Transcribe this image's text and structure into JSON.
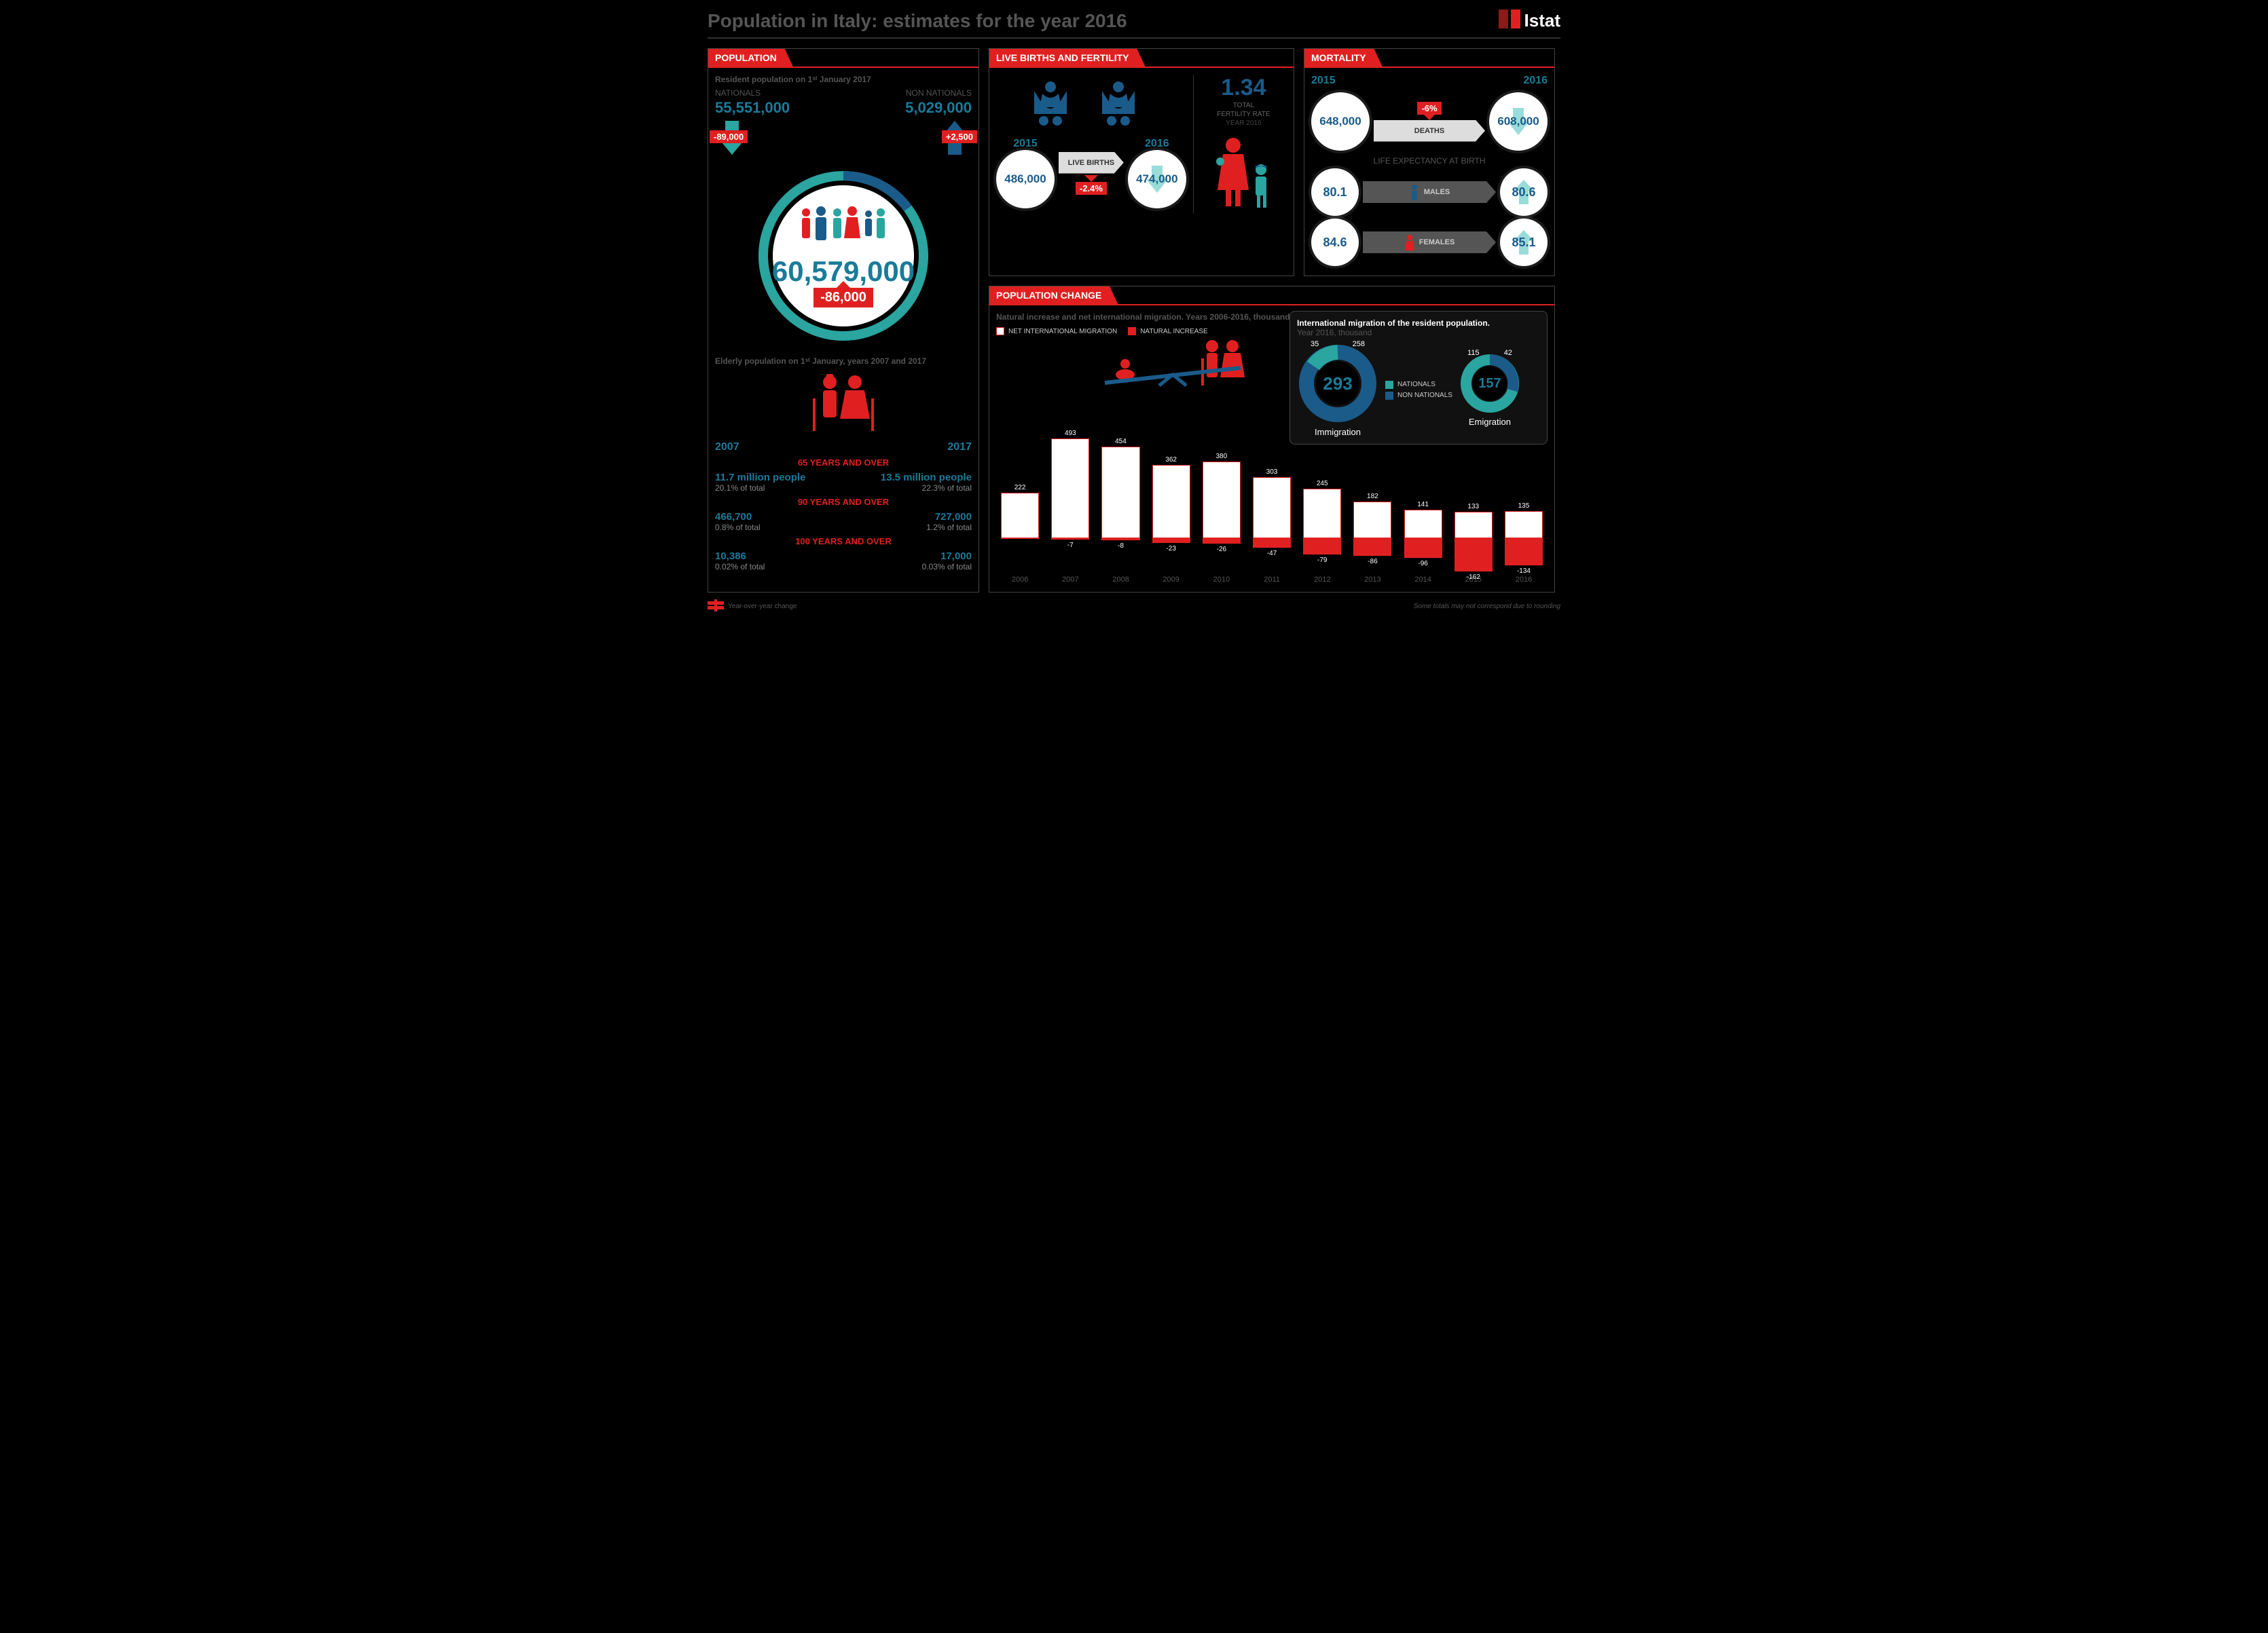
{
  "title": "Population in Italy: estimates for the year 2016",
  "logo": {
    "text": "Istat",
    "color_left": "#8b1a1a",
    "color_right": "#e02020"
  },
  "colors": {
    "red": "#e02020",
    "cyan": "#2aa5a0",
    "blue": "#1a5b8a",
    "stat_blue": "#1a7b9a",
    "bg": "#000000",
    "muted": "#555555",
    "circle_fill": "#ffffff",
    "arrow_grey": "#cccccc"
  },
  "population": {
    "header": "POPULATION",
    "sub1": "Resident population on 1ˢᵗ January 2017",
    "nationals_label": "NATIONALS",
    "nationals_val": "55,551,000",
    "nationals_change": "-89,000",
    "nationals_change_dir": "down",
    "nonnat_label": "NON NATIONALS",
    "nonnat_val": "5,029,000",
    "nonnat_change": "+2,500",
    "nonnat_change_dir": "up",
    "total": "60,579,000",
    "total_change": "-86,000",
    "elderly_sub": "Elderly population on 1ˢᵗ January, years 2007 and 2017",
    "y2007": "2007",
    "y2017": "2017",
    "rows": [
      {
        "label": "65 YEARS AND OVER",
        "l_val": "11.7 million people",
        "l_pct": "20.1% of total",
        "r_val": "13.5 million people",
        "r_pct": "22.3% of total"
      },
      {
        "label": "90 YEARS AND OVER",
        "l_val": "466,700",
        "l_pct": "0.8% of total",
        "r_val": "727,000",
        "r_pct": "1.2% of total"
      },
      {
        "label": "100 YEARS AND OVER",
        "l_val": "10,386",
        "l_pct": "0.02% of total",
        "r_val": "17,000",
        "r_pct": "0.03% of total"
      }
    ]
  },
  "births": {
    "header": "LIVE BIRTHS AND FERTILITY",
    "y2015": "2015",
    "y2016": "2016",
    "val2015": "486,000",
    "label": "LIVE BIRTHS",
    "val2016": "474,000",
    "change": "-2.4%",
    "fertility_num": "1.34",
    "fertility_label1": "TOTAL",
    "fertility_label2": "FERTILITY RATE",
    "fertility_label3": "YEAR 2016"
  },
  "mortality": {
    "header": "MORTALITY",
    "y2015": "2015",
    "y2016": "2016",
    "deaths2015": "648,000",
    "deaths_label": "DEATHS",
    "deaths_change": "-6%",
    "deaths2016": "608,000",
    "life_label": "LIFE EXPECTANCY AT BIRTH",
    "male2015": "80.1",
    "male_label": "MALES",
    "male2016": "80.6",
    "female2015": "84.6",
    "female_label": "FEMALES",
    "female2016": "85.1"
  },
  "change": {
    "header": "POPULATION CHANGE",
    "sub": "Natural increase and net international migration. Years 2006-2016, thousand",
    "legend_mig": "NET INTERNATIONAL MIGRATION",
    "legend_nat": "NATURAL INCREASE",
    "years": [
      "2006",
      "2007",
      "2008",
      "2009",
      "2010",
      "2011",
      "2012",
      "2013",
      "2014",
      "2015",
      "2016"
    ],
    "migration": [
      222,
      493,
      454,
      362,
      380,
      303,
      245,
      182,
      141,
      133,
      135
    ],
    "natural": [
      2,
      -7,
      -8,
      -23,
      -26,
      -47,
      -79,
      -86,
      -96,
      -162,
      -134
    ],
    "max_up": 500,
    "max_down": 170,
    "mig_title": "International migration of the resident population.",
    "mig_year": "Year 2016, thousand",
    "immigration_total": "293",
    "imm_nat": 35,
    "imm_non": 258,
    "emigration_total": "157",
    "emi_nat": 115,
    "emi_non": 42,
    "imm_label": "Immigration",
    "emi_label": "Emigration",
    "leg_nat": "NATIONALS",
    "leg_non": "NON NATIONALS"
  },
  "footer": {
    "yoy": "Year-over-year change",
    "disclaimer": "Some totals may not correspond due to rounding"
  }
}
